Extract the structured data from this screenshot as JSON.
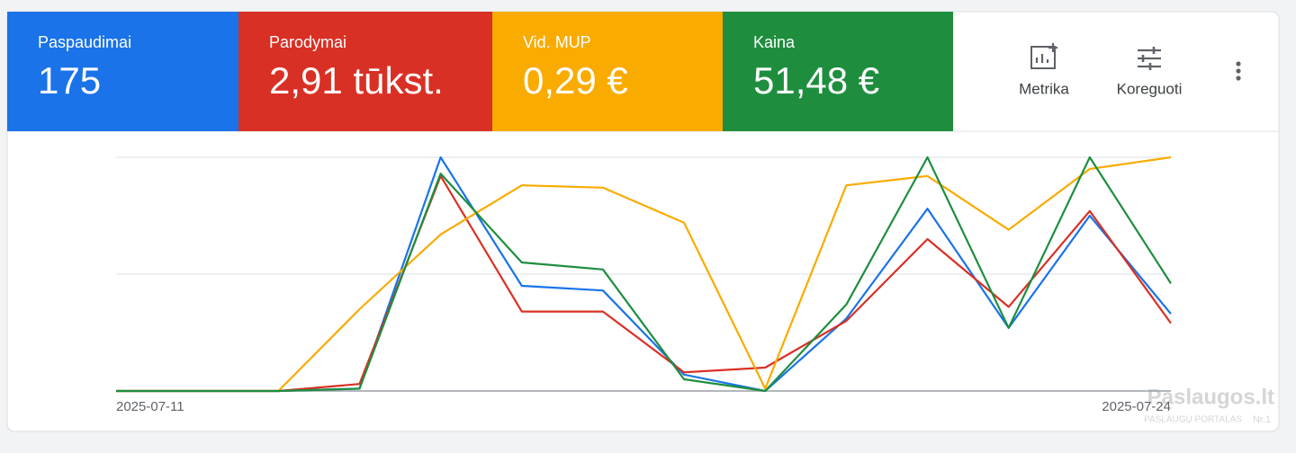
{
  "chart_data": {
    "type": "line",
    "categories": [
      "2025-07-11",
      null,
      null,
      null,
      null,
      null,
      null,
      null,
      null,
      null,
      null,
      null,
      null,
      "2025-07-24"
    ],
    "ylim": [
      0,
      100
    ],
    "grid": true,
    "series": [
      {
        "name": "Paspaudimai",
        "summary": "175",
        "color": "#1a73e8",
        "values": [
          0,
          0,
          0,
          1,
          100,
          45,
          43,
          7,
          0,
          31,
          78,
          27,
          75,
          33
        ]
      },
      {
        "name": "Parodymai",
        "summary": "2,91 tūkst.",
        "color": "#d93025",
        "values": [
          0,
          0,
          0,
          3,
          92,
          34,
          34,
          8,
          10,
          30,
          65,
          36,
          77,
          29
        ]
      },
      {
        "name": "Vid. MUP",
        "summary": "0,29 €",
        "color": "#f9ab00",
        "values": [
          0,
          0,
          0,
          35,
          67,
          88,
          87,
          72,
          1,
          88,
          92,
          69,
          95,
          100
        ]
      },
      {
        "name": "Kaina",
        "summary": "51,48 €",
        "color": "#1e8e3e",
        "values": [
          0,
          0,
          0,
          1,
          93,
          55,
          52,
          5,
          0,
          37,
          100,
          27,
          100,
          46
        ]
      }
    ]
  },
  "toolbar": {
    "metrics": "Metrika",
    "adjust": "Koreguoti"
  },
  "watermark": {
    "title": "Paslaugos.lt",
    "subtitle": "PASLAUGŲ PORTALAS",
    "badge": "Nr.1"
  }
}
